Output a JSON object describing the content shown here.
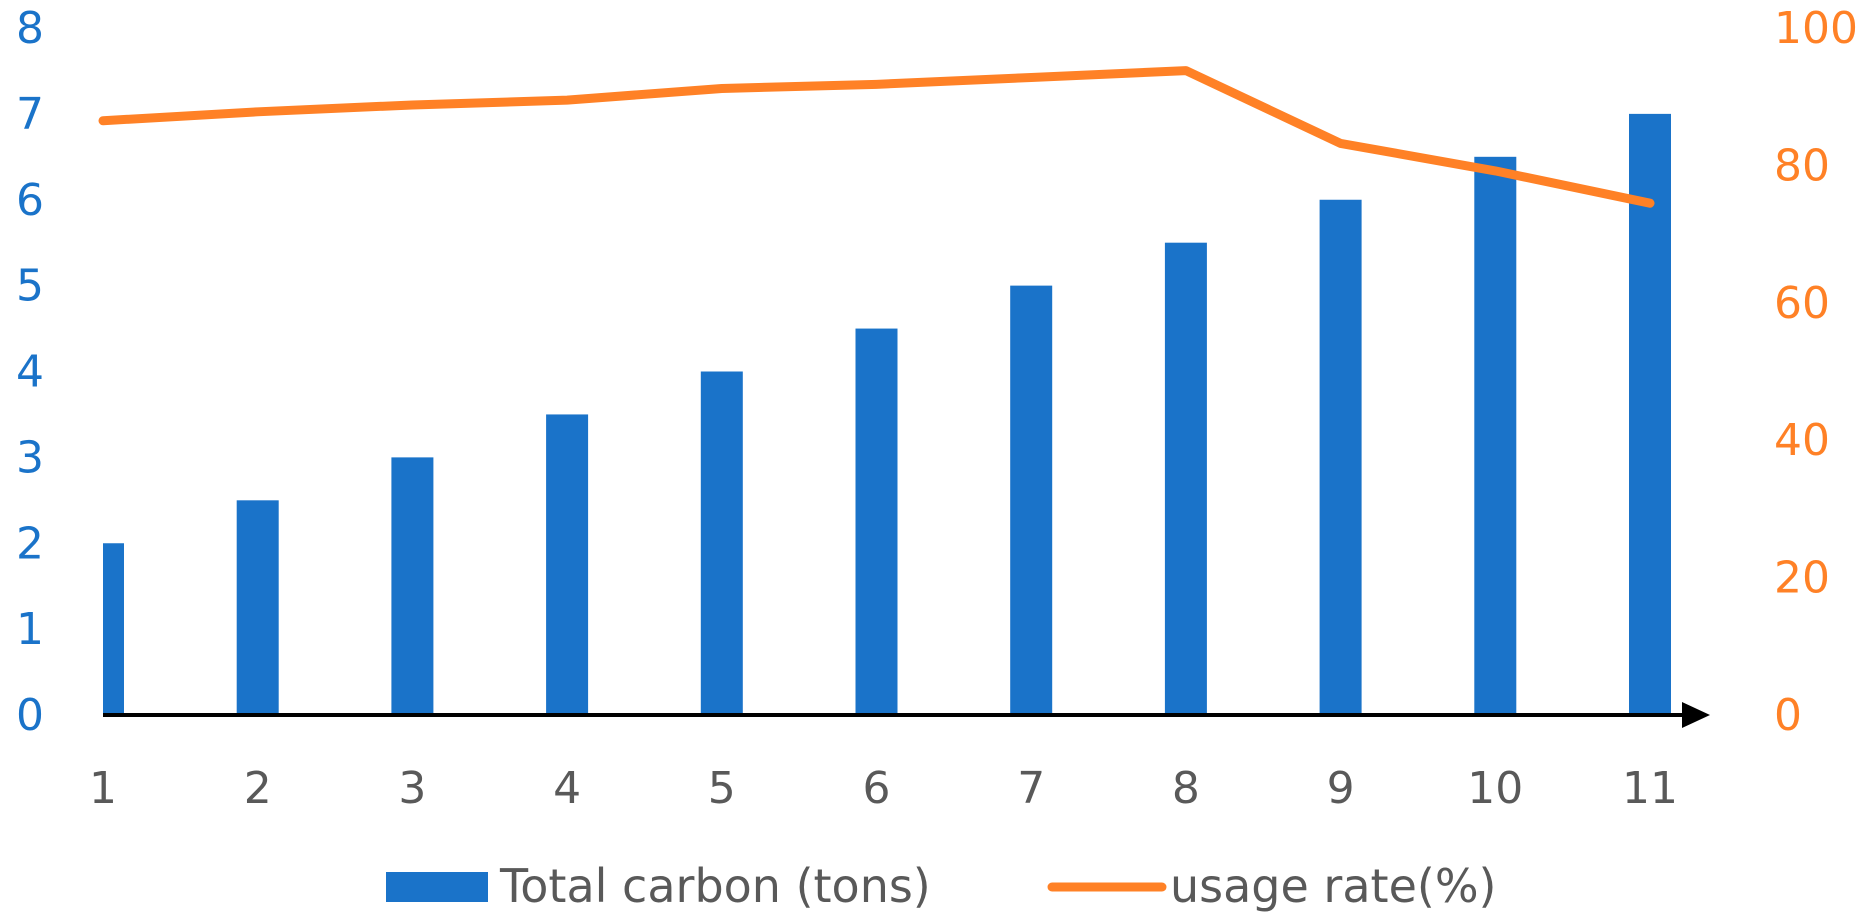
{
  "chart_data": {
    "type": "bar",
    "categories": [
      "1",
      "2",
      "3",
      "4",
      "5",
      "6",
      "7",
      "8",
      "9",
      "10",
      "11"
    ],
    "series": [
      {
        "name": "Total carbon (tons)",
        "kind": "bar",
        "axis": "left",
        "color": "#1a73c9",
        "values": [
          2,
          2.5,
          3,
          3.5,
          4,
          4.5,
          5,
          5.5,
          6,
          6.5,
          7
        ]
      },
      {
        "name": "usage rate(%)",
        "kind": "line",
        "axis": "right",
        "color": "#ff8126",
        "values": [
          86.5,
          87.8,
          88.8,
          89.5,
          91.2,
          91.8,
          92.8,
          93.8,
          83.2,
          79.2,
          74.5
        ]
      }
    ],
    "y_left": {
      "ylim": [
        0,
        8
      ],
      "ticks": [
        "0",
        "1",
        "2",
        "3",
        "4",
        "5",
        "6",
        "7",
        "8"
      ],
      "color": "#1a73c9"
    },
    "y_right": {
      "ylim": [
        0,
        100
      ],
      "ticks": [
        "0",
        "20",
        "40",
        "60",
        "80",
        "100"
      ],
      "color": "#ff8126"
    },
    "x_tick_color": "#595959",
    "grid": false,
    "legend": "bottom"
  }
}
